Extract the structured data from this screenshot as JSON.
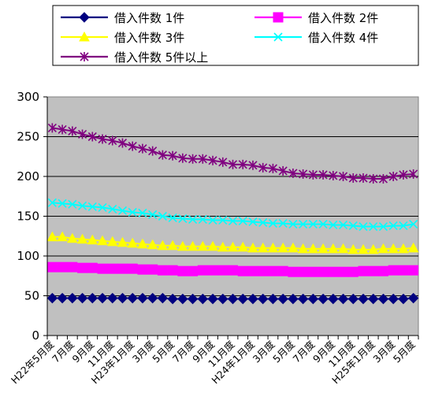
{
  "chart_data": {
    "type": "line",
    "title": "",
    "xlabel": "",
    "ylabel": "",
    "ylim": [
      0,
      300
    ],
    "yticks": [
      0,
      50,
      100,
      150,
      200,
      250,
      300
    ],
    "grid": "horizontal",
    "legend_position": "top",
    "plot_background": "#C0C0C0",
    "x_tick_labels": [
      "H22年5月度",
      "7月度",
      "9月度",
      "11月度",
      "H23年1月度",
      "3月度",
      "5月度",
      "7月度",
      "9月度",
      "11月度",
      "H24年1月度",
      "3月度",
      "5月度",
      "7月度",
      "9月度",
      "11月度",
      "H25年1月度",
      "3月度",
      "5月度"
    ],
    "num_points": 37,
    "series": [
      {
        "name": "借入件数 1件",
        "color": "#000080",
        "marker": "diamond",
        "values": [
          47,
          47,
          47,
          47,
          47,
          47,
          47,
          47,
          47,
          47,
          47,
          47,
          46,
          46,
          46,
          46,
          46,
          46,
          46,
          46,
          46,
          46,
          46,
          46,
          46,
          46,
          46,
          46,
          46,
          46,
          46,
          46,
          46,
          46,
          46,
          46,
          47
        ]
      },
      {
        "name": "借入件数 2件",
        "color": "#FF00FF",
        "marker": "square",
        "values": [
          86,
          86,
          86,
          85,
          85,
          84,
          84,
          84,
          84,
          83,
          83,
          82,
          82,
          81,
          81,
          82,
          82,
          82,
          82,
          81,
          81,
          81,
          81,
          81,
          80,
          80,
          80,
          80,
          80,
          80,
          80,
          81,
          81,
          81,
          82,
          82,
          82
        ]
      },
      {
        "name": "借入件数 3件",
        "color": "#FFFF00",
        "marker": "triangle",
        "values": [
          124,
          124,
          122,
          121,
          120,
          119,
          118,
          117,
          116,
          115,
          114,
          113,
          113,
          112,
          112,
          112,
          112,
          111,
          111,
          111,
          110,
          110,
          110,
          110,
          110,
          109,
          109,
          109,
          109,
          109,
          108,
          108,
          108,
          109,
          109,
          109,
          110
        ]
      },
      {
        "name": "借入件数 4件",
        "color": "#00FFFF",
        "marker": "x",
        "values": [
          167,
          166,
          165,
          163,
          162,
          161,
          159,
          157,
          155,
          154,
          152,
          150,
          148,
          147,
          146,
          146,
          145,
          145,
          144,
          144,
          143,
          142,
          141,
          141,
          140,
          140,
          140,
          140,
          139,
          139,
          138,
          137,
          137,
          137,
          138,
          138,
          140
        ]
      },
      {
        "name": "借入件数 5件以上",
        "color": "#800080",
        "marker": "star",
        "values": [
          261,
          259,
          257,
          253,
          250,
          247,
          245,
          242,
          238,
          235,
          232,
          227,
          226,
          223,
          222,
          222,
          220,
          218,
          215,
          215,
          214,
          211,
          210,
          207,
          204,
          203,
          202,
          202,
          201,
          200,
          198,
          198,
          197,
          197,
          200,
          202,
          203
        ]
      }
    ]
  },
  "legend": {
    "items": [
      "借入件数 1件",
      "借入件数 2件",
      "借入件数 3件",
      "借入件数 4件",
      "借入件数 5件以上"
    ]
  }
}
